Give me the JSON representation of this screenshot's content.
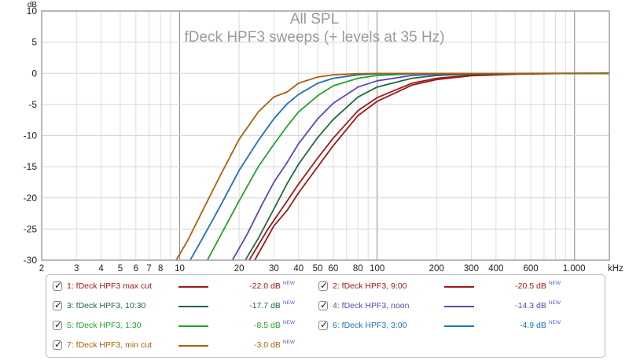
{
  "chart_data": {
    "type": "line",
    "title": "All SPL",
    "subtitle": "fDeck HPF3 sweeps (+ levels at 35 Hz)",
    "ylabel": "dB",
    "xlabel": "",
    "x_unit": "kHz",
    "x_scale": "log",
    "xlim": [
      2,
      1500
    ],
    "ylim": [
      -30,
      10
    ],
    "grid": true,
    "x_ticks": [
      {
        "value": 2,
        "label": "2"
      },
      {
        "value": 3,
        "label": "3"
      },
      {
        "value": 4,
        "label": "4"
      },
      {
        "value": 5,
        "label": "5"
      },
      {
        "value": 6,
        "label": "6"
      },
      {
        "value": 7,
        "label": "7"
      },
      {
        "value": 8,
        "label": "8"
      },
      {
        "value": 10,
        "label": "10"
      },
      {
        "value": 20,
        "label": "20"
      },
      {
        "value": 30,
        "label": "30"
      },
      {
        "value": 40,
        "label": "40"
      },
      {
        "value": 50,
        "label": "50"
      },
      {
        "value": 60,
        "label": "60"
      },
      {
        "value": 80,
        "label": "80"
      },
      {
        "value": 100,
        "label": "100"
      },
      {
        "value": 200,
        "label": "200"
      },
      {
        "value": 300,
        "label": "300"
      },
      {
        "value": 400,
        "label": "400"
      },
      {
        "value": 600,
        "label": "600"
      },
      {
        "value": 1000,
        "label": "1.000"
      }
    ],
    "x_major_lines": [
      10,
      100,
      1000
    ],
    "y_ticks": [
      10,
      5,
      0,
      -5,
      -10,
      -15,
      -20,
      -25,
      -30
    ],
    "series": [
      {
        "name": "1: fDeck HPF3 max cut",
        "color": "#a01818",
        "x": [
          24,
          30,
          35,
          40,
          50,
          60,
          80,
          100,
          150,
          200,
          300,
          500,
          800,
          1500
        ],
        "y": [
          -30,
          -24.5,
          -22,
          -19.2,
          -15,
          -11.6,
          -6.8,
          -4.5,
          -1.9,
          -1.0,
          -0.4,
          -0.15,
          -0.05,
          0
        ]
      },
      {
        "name": "2: fDeck HPF3, 9:00",
        "color": "#a01818",
        "x": [
          22.5,
          28,
          35,
          40,
          50,
          60,
          80,
          100,
          150,
          200,
          300,
          500,
          800,
          1500
        ],
        "y": [
          -30,
          -25,
          -20.5,
          -17.8,
          -13.6,
          -10.4,
          -6.0,
          -3.9,
          -1.6,
          -0.8,
          -0.3,
          -0.1,
          -0.04,
          0
        ]
      },
      {
        "name": "3: fDeck HPF3, 10:30",
        "color": "#1f6a3e",
        "x": [
          21.5,
          25,
          30,
          35,
          40,
          50,
          60,
          80,
          100,
          150,
          200,
          300,
          500,
          1500
        ],
        "y": [
          -30,
          -26.5,
          -21.8,
          -17.7,
          -14.6,
          -10.3,
          -7.4,
          -3.8,
          -2.2,
          -0.8,
          -0.35,
          -0.12,
          -0.04,
          0
        ]
      },
      {
        "name": "4: fDeck HPF3, noon",
        "color": "#5a48b8",
        "x": [
          18.5,
          22,
          26,
          30,
          35,
          40,
          50,
          60,
          80,
          100,
          150,
          200,
          300,
          1500
        ],
        "y": [
          -30,
          -25.8,
          -21.2,
          -17.5,
          -14.3,
          -11.3,
          -7.3,
          -4.8,
          -2.2,
          -1.2,
          -0.35,
          -0.15,
          -0.05,
          0
        ]
      },
      {
        "name": "5: fDeck HPF3, 1:30",
        "color": "#22a22a",
        "x": [
          13.8,
          16,
          20,
          25,
          30,
          35,
          40,
          50,
          60,
          80,
          100,
          150,
          200,
          1500
        ],
        "y": [
          -30,
          -26.2,
          -20.5,
          -15,
          -11.4,
          -8.5,
          -6.2,
          -3.6,
          -2.0,
          -0.8,
          -0.35,
          -0.1,
          -0.03,
          0
        ]
      },
      {
        "name": "6: fDeck HPF3, 3:00",
        "color": "#1a72b8",
        "x": [
          11.3,
          13,
          16,
          20,
          25,
          30,
          35,
          40,
          50,
          60,
          80,
          100,
          150,
          1500
        ],
        "y": [
          -30,
          -26.6,
          -21.4,
          -15.6,
          -10.8,
          -7.3,
          -4.9,
          -3.4,
          -1.6,
          -0.8,
          -0.25,
          -0.1,
          -0.03,
          0
        ]
      },
      {
        "name": "7: fDeck HPF3, min cut",
        "color": "#a8620a",
        "x": [
          9.6,
          11,
          13,
          16,
          20,
          25,
          30,
          35,
          40,
          50,
          60,
          80,
          100,
          1500
        ],
        "y": [
          -30,
          -26.8,
          -22.2,
          -16.5,
          -10.6,
          -6.2,
          -3.8,
          -3.0,
          -1.6,
          -0.6,
          -0.25,
          -0.07,
          -0.02,
          0
        ]
      }
    ]
  },
  "legend": {
    "items": [
      {
        "name": "1: fDeck HPF3 max cut",
        "level": "-22.0 dB",
        "badge": "NEW",
        "color": "#a01818"
      },
      {
        "name": "2: fDeck HPF3, 9:00",
        "level": "-20.5 dB",
        "badge": "NEW",
        "color": "#a01818"
      },
      {
        "name": "3: fDeck HPF3, 10:30",
        "level": "-17.7 dB",
        "badge": "NEW",
        "color": "#1f6a3e"
      },
      {
        "name": "4: fDeck HPF3, noon",
        "level": "-14.3 dB",
        "badge": "NEW",
        "color": "#5a48b8"
      },
      {
        "name": "5: fDeck HPF3, 1:30",
        "level": "-8.5 dB",
        "badge": "NEW",
        "color": "#22a22a"
      },
      {
        "name": "6: fDeck HPF3, 3:00",
        "level": "-4.9 dB",
        "badge": "NEW",
        "color": "#1a72b8"
      },
      {
        "name": "7: fDeck HPF3, min cut",
        "level": "-3.0 dB",
        "badge": "NEW",
        "color": "#a8620a"
      }
    ]
  },
  "checkbox_glyph": "✓"
}
